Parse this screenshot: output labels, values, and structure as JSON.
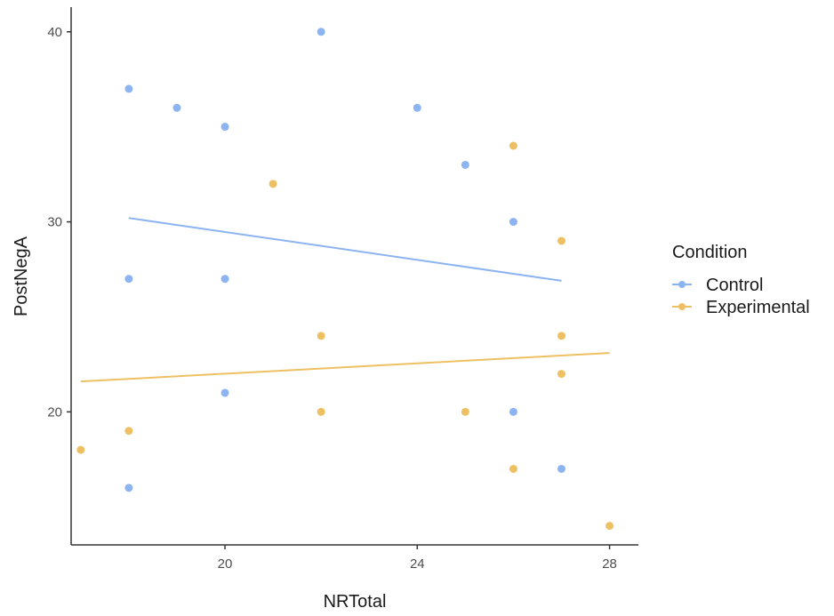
{
  "chart_data": {
    "type": "scatter",
    "xlabel": "NRTotal",
    "ylabel": "PostNegA",
    "xlim": [
      16.8,
      28.6
    ],
    "ylim": [
      13.0,
      41.3
    ],
    "xticks": [
      20,
      24,
      28
    ],
    "yticks": [
      20,
      30,
      40
    ],
    "grid": false,
    "legend": {
      "title": "Condition",
      "placement": "right"
    },
    "series": [
      {
        "name": "Control",
        "color": "#8cb4f0",
        "points": [
          [
            18,
            37
          ],
          [
            19,
            36
          ],
          [
            20,
            35
          ],
          [
            22,
            40
          ],
          [
            24,
            36
          ],
          [
            25,
            33
          ],
          [
            26,
            30
          ],
          [
            18,
            27
          ],
          [
            20,
            27
          ],
          [
            20,
            21
          ],
          [
            26,
            20
          ],
          [
            27,
            17
          ],
          [
            18,
            16
          ]
        ],
        "fit": [
          [
            18,
            30.2
          ],
          [
            27,
            26.9
          ]
        ]
      },
      {
        "name": "Experimental",
        "color": "#eec064",
        "points": [
          [
            17,
            18
          ],
          [
            18,
            19
          ],
          [
            21,
            32
          ],
          [
            22,
            24
          ],
          [
            22,
            20
          ],
          [
            25,
            20
          ],
          [
            26,
            34
          ],
          [
            26,
            17
          ],
          [
            27,
            29
          ],
          [
            27,
            24
          ],
          [
            27,
            22
          ],
          [
            28,
            14
          ]
        ],
        "fit": [
          [
            17,
            21.6
          ],
          [
            28,
            23.1
          ]
        ]
      }
    ]
  }
}
